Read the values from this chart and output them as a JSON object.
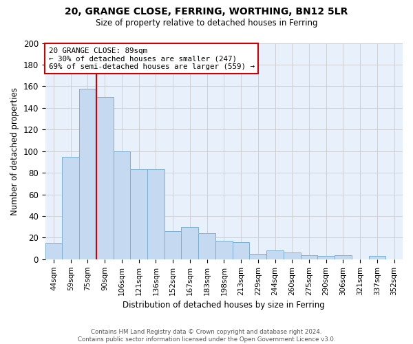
{
  "title": "20, GRANGE CLOSE, FERRING, WORTHING, BN12 5LR",
  "subtitle": "Size of property relative to detached houses in Ferring",
  "xlabel": "Distribution of detached houses by size in Ferring",
  "ylabel": "Number of detached properties",
  "bar_labels": [
    "44sqm",
    "59sqm",
    "75sqm",
    "90sqm",
    "106sqm",
    "121sqm",
    "136sqm",
    "152sqm",
    "167sqm",
    "183sqm",
    "198sqm",
    "213sqm",
    "229sqm",
    "244sqm",
    "260sqm",
    "275sqm",
    "290sqm",
    "306sqm",
    "321sqm",
    "337sqm",
    "352sqm"
  ],
  "bar_values": [
    15,
    95,
    158,
    150,
    100,
    83,
    83,
    26,
    30,
    24,
    17,
    16,
    5,
    8,
    6,
    4,
    3,
    4,
    0,
    3,
    0
  ],
  "bar_color": "#c5d9f0",
  "bar_edgecolor": "#7bafd4",
  "vline_x": 3,
  "vline_color": "#cc0000",
  "ylim": [
    0,
    200
  ],
  "yticks": [
    0,
    20,
    40,
    60,
    80,
    100,
    120,
    140,
    160,
    180,
    200
  ],
  "annotation_title": "20 GRANGE CLOSE: 89sqm",
  "annotation_line1": "← 30% of detached houses are smaller (247)",
  "annotation_line2": "69% of semi-detached houses are larger (559) →",
  "annotation_box_color": "#ffffff",
  "annotation_box_edgecolor": "#cc0000",
  "footer_line1": "Contains HM Land Registry data © Crown copyright and database right 2024.",
  "footer_line2": "Contains public sector information licensed under the Open Government Licence v3.0.",
  "background_color": "#ffffff",
  "grid_color": "#cccccc"
}
